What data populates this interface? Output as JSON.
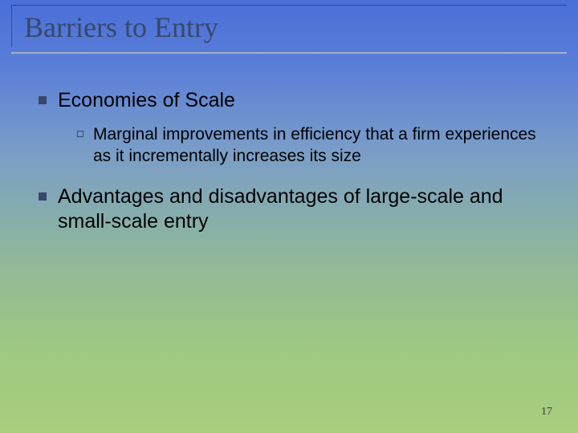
{
  "slide": {
    "title": "Barriers to Entry",
    "page_number": "17",
    "background": {
      "gradient_stops": [
        "#4a6fd8",
        "#5a7ed8",
        "#7a9dc8",
        "#8fb89a",
        "#9ec882",
        "#a8ce7e"
      ]
    },
    "title_color": "#38476b",
    "bullet_color": "#38476b",
    "bullets": [
      {
        "text": "Economies of Scale",
        "sub": [
          {
            "text": "Marginal improvements in efficiency that a firm experiences as it incrementally increases its size"
          }
        ]
      },
      {
        "text": "Advantages and disadvantages of large-scale and small-scale entry",
        "sub": []
      }
    ],
    "fonts": {
      "title_family": "Garamond",
      "body_family": "Arial",
      "title_size_pt": 36,
      "l1_size_pt": 25,
      "l2_size_pt": 21
    }
  }
}
